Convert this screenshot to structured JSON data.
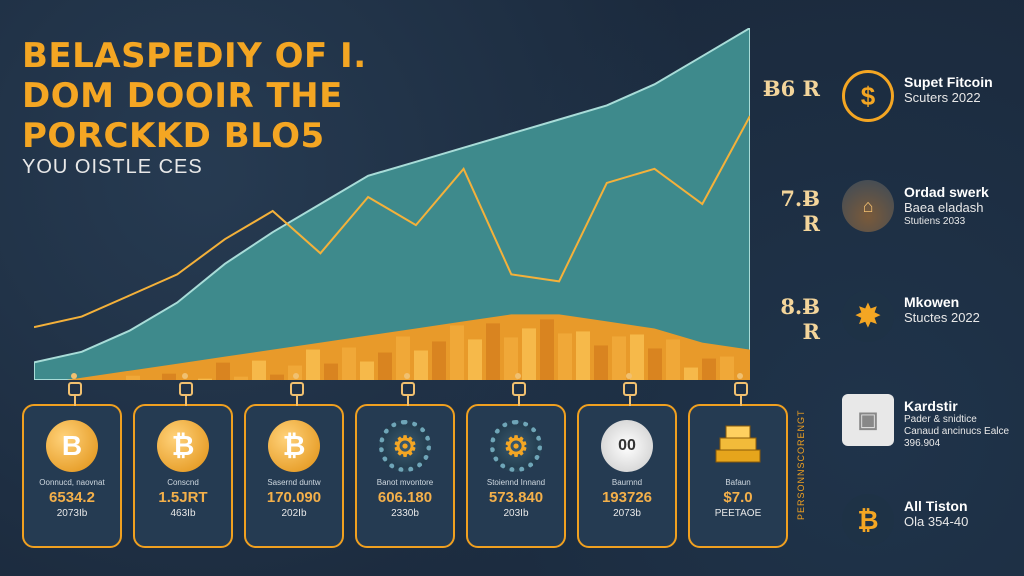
{
  "title_lines": [
    "BELASPEDIY OF I.",
    "DOM DOOIR THE",
    "PORCKKD BLO5"
  ],
  "subtitle": "YOU OISTLE CES",
  "axis_labels": [
    "Ƀ6 R",
    "7.Ƀ R",
    "8.Ƀ R"
  ],
  "chart_data": {
    "type": "area",
    "title": "BELASPEDIY OF I. DOM DOOIR THE PORCKKD BLO5",
    "series": [
      {
        "name": "upper area",
        "values": [
          5,
          8,
          14,
          22,
          33,
          42,
          50,
          58,
          62,
          66,
          70,
          74,
          78,
          84,
          92,
          100
        ]
      },
      {
        "name": "gold line",
        "values": [
          15,
          18,
          24,
          30,
          40,
          48,
          36,
          52,
          44,
          60,
          30,
          28,
          56,
          60,
          50,
          75
        ]
      },
      {
        "name": "city skyline",
        "values": [
          10,
          12,
          14,
          16,
          18,
          20,
          22,
          24,
          26,
          28,
          30,
          30,
          28,
          26,
          22,
          20
        ]
      }
    ],
    "ylim": [
      0,
      100
    ]
  },
  "cards": [
    {
      "icon": "B",
      "style": "gold",
      "label": "Oonnucd, naovnat",
      "value": "6534.2",
      "sub": "2073Ib"
    },
    {
      "icon": "₿",
      "style": "gold",
      "label": "Conscnd",
      "value": "1.5JRT",
      "sub": "463Ib"
    },
    {
      "icon": "₿",
      "style": "gold",
      "label": "Sasernd  duntw",
      "value": "170.090",
      "sub": "202Ib"
    },
    {
      "icon": "⚙",
      "style": "gear",
      "label": "Banot mvontore",
      "value": "606.180",
      "sub": "2330b"
    },
    {
      "icon": "⚙",
      "style": "gear",
      "label": "Stoiennd Innand",
      "value": "573.840",
      "sub": "203Ib"
    },
    {
      "icon": "00",
      "style": "white",
      "label": "Baurnnd",
      "value": "193726",
      "sub": "2073b"
    },
    {
      "icon": "▦",
      "style": "stack",
      "label": "Bafaun",
      "value": "$7.0",
      "sub": "PEETAOE"
    }
  ],
  "side_text": "PERSONNSCORENGT",
  "legend": [
    {
      "icon": "$",
      "style": "outline",
      "t1": "Supet Fitcoin",
      "t2": "Scuters 2022",
      "t3": ""
    },
    {
      "icon": "⌂",
      "style": "photo",
      "t1": "Ordad swerk",
      "t2": "Baea eladash",
      "t3": "Stutiens 2033"
    },
    {
      "icon": "✸",
      "style": "star",
      "t1": "Mkowen",
      "t2": "Stuctes 2022",
      "t3": ""
    },
    {
      "icon": "▣",
      "style": "box",
      "t1": "Kardstir",
      "t2": "Pader & snidtice",
      "t3": "Canaud ancinucs Ealce 396.904"
    },
    {
      "icon": "₿",
      "style": "fill",
      "t1": "All Tiston",
      "t2": "Ola 354-40",
      "t3": ""
    }
  ],
  "colors": {
    "accent": "#f4a623",
    "teal": "#3e8a8c",
    "bg": "#1b2a3d"
  }
}
